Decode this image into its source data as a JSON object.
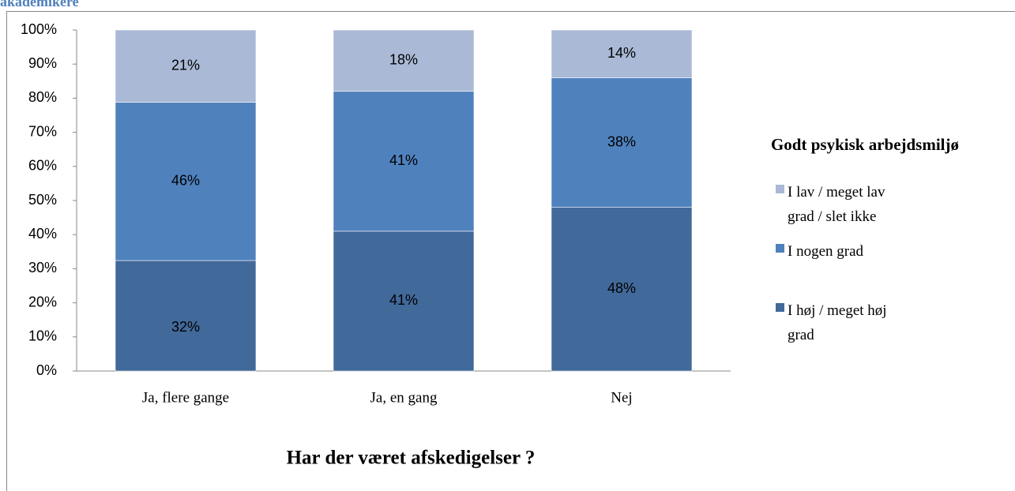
{
  "caption": "akademikere",
  "chart_data": {
    "type": "stacked_bar",
    "xlabel": "Har der været afskedigelser ?",
    "legend_title": "Godt psykisk arbejdsmiljø",
    "categories": [
      "Ja, flere gange",
      "Ja, en gang",
      "Nej"
    ],
    "series": [
      {
        "name": "I høj / meget høj grad",
        "color": "#41699a",
        "values": [
          32.4,
          41,
          48
        ],
        "value_labels": [
          "32%",
          "41%",
          "48%"
        ]
      },
      {
        "name": "I nogen grad",
        "color": "#4f81bd",
        "values": [
          46.4,
          41,
          38
        ],
        "value_labels": [
          "46%",
          "41%",
          "38%"
        ]
      },
      {
        "name": "I lav / meget lav grad / slet ikke",
        "color": "#a9b9d6",
        "values": [
          21.2,
          18,
          14
        ],
        "value_labels": [
          "21%",
          "18%",
          "14%"
        ]
      }
    ],
    "ylim": [
      0,
      100
    ],
    "yticks": [
      {
        "value": 0,
        "label": "0%"
      },
      {
        "value": 10,
        "label": "10%"
      },
      {
        "value": 20,
        "label": "20%"
      },
      {
        "value": 30,
        "label": "30%"
      },
      {
        "value": 40,
        "label": "40%"
      },
      {
        "value": 50,
        "label": "50%"
      },
      {
        "value": 60,
        "label": "60%"
      },
      {
        "value": 70,
        "label": "70%"
      },
      {
        "value": 80,
        "label": "80%"
      },
      {
        "value": 90,
        "label": "90%"
      },
      {
        "value": 100,
        "label": "100%"
      }
    ],
    "legend_position": "right"
  }
}
